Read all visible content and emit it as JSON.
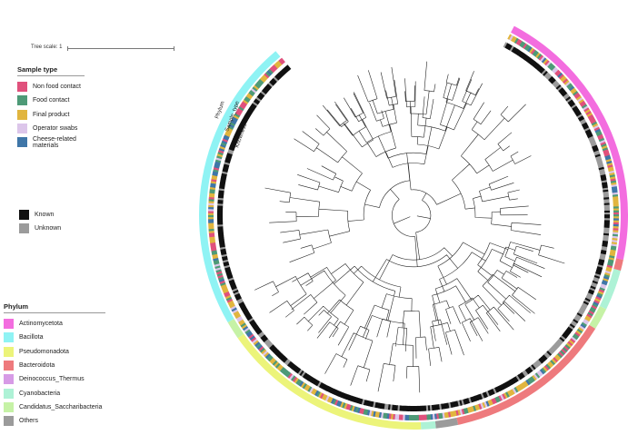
{
  "tree_scale": "Tree scale: 1",
  "ring_labels": {
    "phylum": "Phylum",
    "sample_type": "Sample_type",
    "knowness": "Knowness"
  },
  "legends": {
    "sample_type": {
      "title": "Sample type",
      "items": [
        {
          "label": "Non food contact",
          "color": "#e0517c"
        },
        {
          "label": "Food contact",
          "color": "#4e9a77"
        },
        {
          "label": "Final product",
          "color": "#e1b53f"
        },
        {
          "label": "Operator swabs",
          "color": "#dcc6ea"
        },
        {
          "label": "Cheese-related materials",
          "color": "#3f76a8"
        }
      ]
    },
    "knowness": {
      "items": [
        {
          "label": "Known",
          "color": "#111111"
        },
        {
          "label": "Unknown",
          "color": "#9b9b9b"
        }
      ]
    },
    "phylum": {
      "title": "Phylum",
      "items": [
        {
          "label": "Actinomycetota",
          "color": "#f36ddf"
        },
        {
          "label": "Bacillota",
          "color": "#8ff3f4"
        },
        {
          "label": "Pseudomonadota",
          "color": "#ecf47a"
        },
        {
          "label": "Bacteroidota",
          "color": "#ee7a7d"
        },
        {
          "label": "Deinococcus_Thermus",
          "color": "#d79be6"
        },
        {
          "label": "Cyanobacteria",
          "color": "#aef2d6"
        },
        {
          "label": "Candidatus_Saccharibacteria",
          "color": "#c6f2a6"
        },
        {
          "label": "Others",
          "color": "#9b9b9b"
        }
      ]
    }
  }
}
